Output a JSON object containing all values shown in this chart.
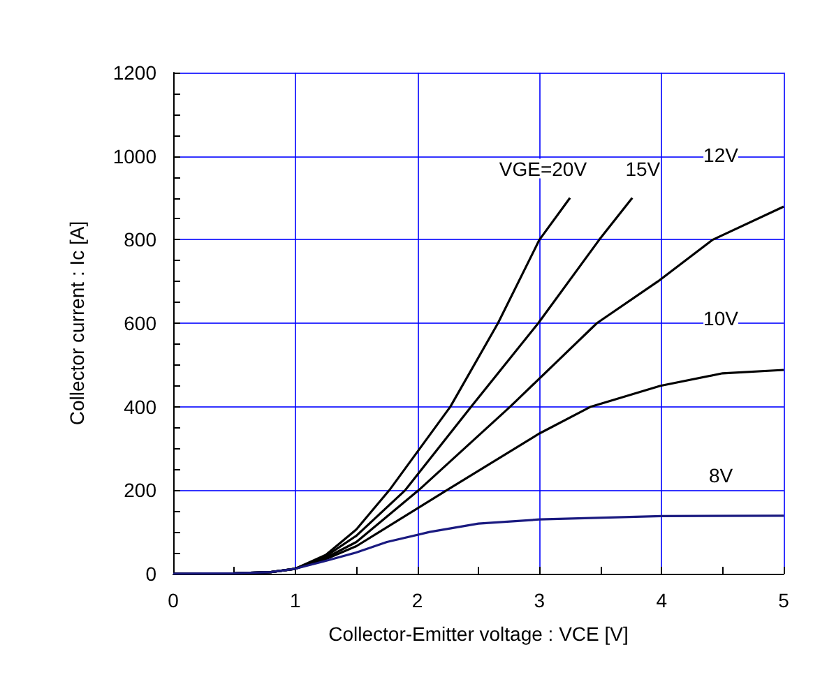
{
  "chart_data": {
    "type": "line",
    "xlabel": "Collector-Emitter voltage : VCE [V]",
    "ylabel": "Collector current : Ic [A]",
    "xlim": [
      0,
      5
    ],
    "xticks": [
      0,
      1,
      2,
      3,
      4,
      5
    ],
    "ylim": [
      0,
      1200
    ],
    "yticks": [
      0,
      200,
      400,
      600,
      800,
      1000,
      1200
    ],
    "grid": true,
    "marker": "none",
    "line_style": "solid",
    "series": [
      {
        "name": "VGE=20V",
        "color": "#000000",
        "x": [
          0,
          0.5,
          0.8,
          1,
          1.25,
          1.5,
          1.77,
          2.27,
          2.66,
          3.0,
          3.25
        ],
        "values": [
          0,
          1,
          4,
          12,
          45,
          106,
          200,
          400,
          600,
          800,
          900
        ]
      },
      {
        "name": "15V",
        "color": "#000000",
        "x": [
          0,
          0.5,
          0.8,
          1,
          1.25,
          1.5,
          1.9,
          2.44,
          2.99,
          3.49,
          3.76
        ],
        "values": [
          0,
          1,
          4,
          12,
          42,
          91,
          200,
          400,
          600,
          800,
          900
        ]
      },
      {
        "name": "12V",
        "color": "#000000",
        "x": [
          0,
          0.5,
          0.8,
          1,
          1.25,
          1.5,
          2.01,
          2.76,
          3.47,
          3.97,
          4.42,
          5
        ],
        "values": [
          0,
          1,
          4,
          12,
          38,
          76,
          200,
          400,
          600,
          700,
          800,
          879
        ]
      },
      {
        "name": "10V",
        "color": "#000000",
        "x": [
          0,
          0.5,
          0.8,
          1,
          1.25,
          1.5,
          2.24,
          3.0,
          3.42,
          3.99,
          4.5,
          5
        ],
        "values": [
          0,
          1,
          4,
          12,
          35,
          66,
          200,
          336,
          400,
          450,
          480,
          488
        ]
      },
      {
        "name": "8V",
        "color": "#1a1a80",
        "x": [
          0,
          0.5,
          0.8,
          1,
          1.25,
          1.5,
          1.75,
          2.1,
          2.5,
          3,
          4,
          5
        ],
        "values": [
          0,
          1,
          4,
          12,
          31,
          51,
          76,
          100,
          120,
          130,
          138,
          139
        ]
      }
    ]
  }
}
